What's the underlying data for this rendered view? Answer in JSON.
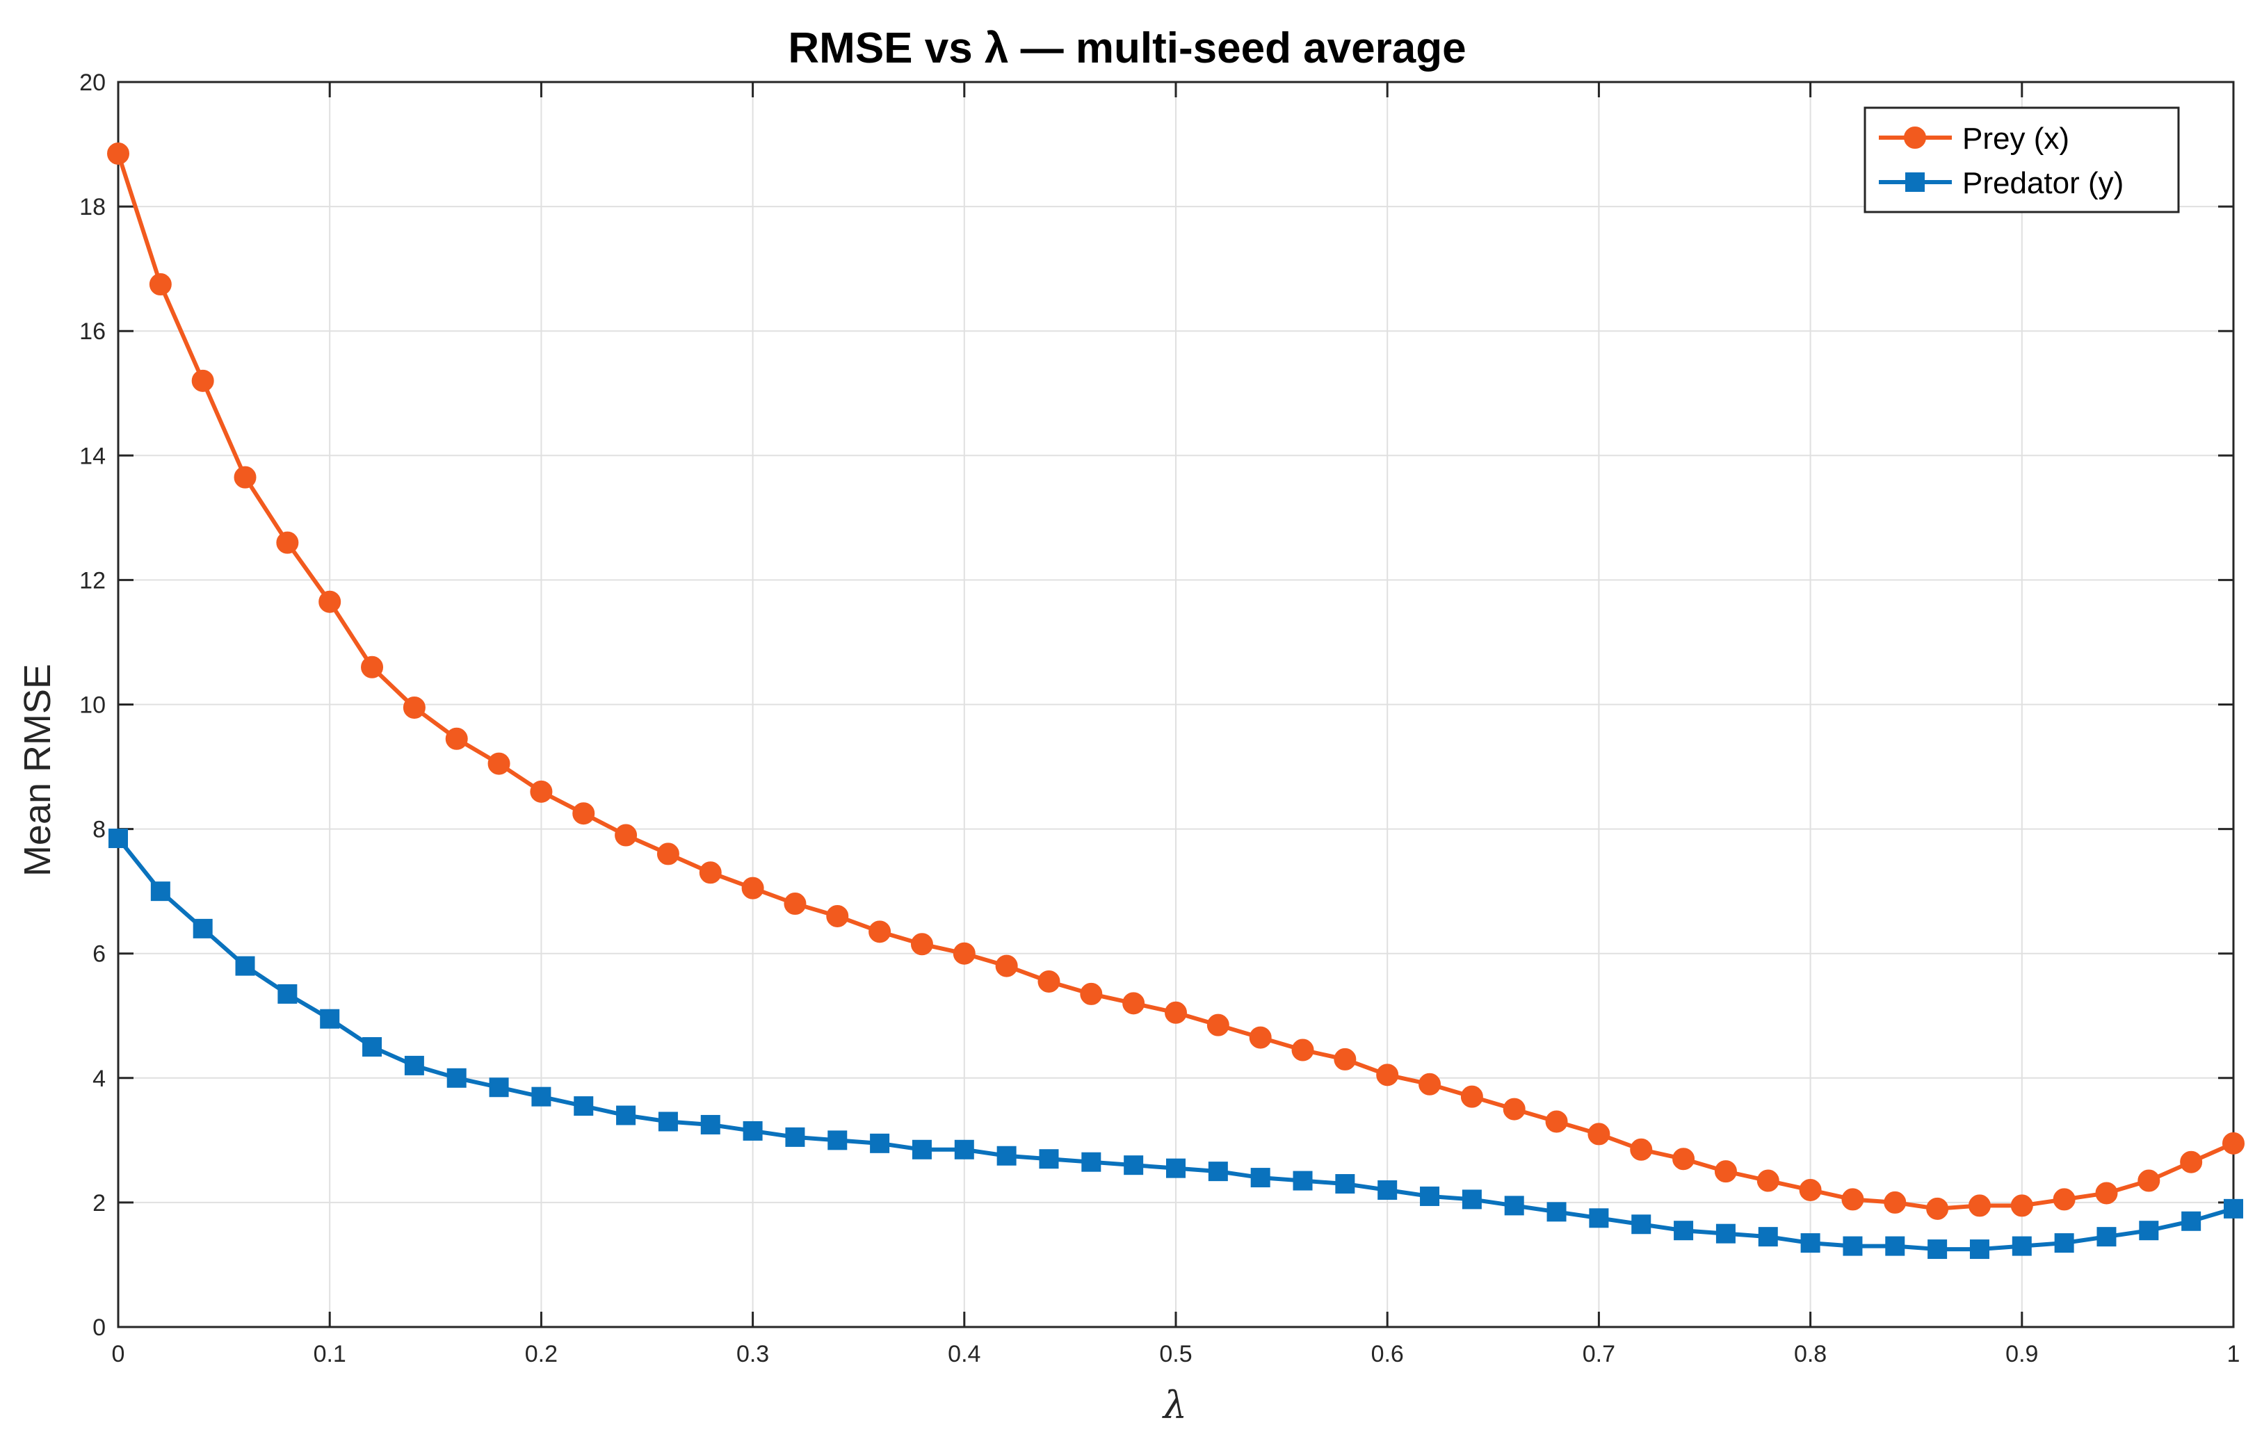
{
  "chart_data": {
    "type": "line",
    "title": "RMSE vs λ — multi-seed average",
    "xlabel": "λ",
    "ylabel": "Mean RMSE",
    "xlim": [
      0,
      1
    ],
    "ylim": [
      0,
      20
    ],
    "xticks": [
      0,
      0.1,
      0.2,
      0.3,
      0.4,
      0.5,
      0.6,
      0.7,
      0.8,
      0.9,
      1
    ],
    "xtick_labels": [
      "0",
      "0.1",
      "0.2",
      "0.3",
      "0.4",
      "0.5",
      "0.6",
      "0.7",
      "0.8",
      "0.9",
      "1"
    ],
    "yticks": [
      0,
      2,
      4,
      6,
      8,
      10,
      12,
      14,
      16,
      18,
      20
    ],
    "ytick_labels": [
      "0",
      "2",
      "4",
      "6",
      "8",
      "10",
      "12",
      "14",
      "16",
      "18",
      "20"
    ],
    "grid": true,
    "legend_position": "top-right",
    "x": [
      0,
      0.02,
      0.04,
      0.06,
      0.08,
      0.1,
      0.12,
      0.14,
      0.16,
      0.18,
      0.2,
      0.22,
      0.24,
      0.26,
      0.28,
      0.3,
      0.32,
      0.34,
      0.36,
      0.38,
      0.4,
      0.42,
      0.44,
      0.46,
      0.48,
      0.5,
      0.52,
      0.54,
      0.56,
      0.58,
      0.6,
      0.62,
      0.64,
      0.66,
      0.68,
      0.7,
      0.72,
      0.74,
      0.76,
      0.78,
      0.8,
      0.82,
      0.84,
      0.86,
      0.88,
      0.9,
      0.92,
      0.94,
      0.96,
      0.98,
      1
    ],
    "series": [
      {
        "name": "Prey (x)",
        "color": "#F25A1E",
        "marker": "circle",
        "values": [
          18.85,
          16.75,
          15.2,
          13.65,
          12.6,
          11.65,
          10.6,
          9.95,
          9.45,
          9.05,
          8.6,
          8.25,
          7.9,
          7.6,
          7.3,
          7.05,
          6.8,
          6.6,
          6.35,
          6.15,
          6.0,
          5.8,
          5.55,
          5.35,
          5.2,
          5.05,
          4.85,
          4.65,
          4.45,
          4.3,
          4.05,
          3.9,
          3.7,
          3.5,
          3.3,
          3.1,
          2.85,
          2.7,
          2.5,
          2.35,
          2.2,
          2.05,
          2.0,
          1.9,
          1.95,
          1.95,
          2.05,
          2.15,
          2.35,
          2.65,
          2.95
        ]
      },
      {
        "name": "Predator (y)",
        "color": "#0A72BD",
        "marker": "square",
        "values": [
          7.85,
          7.0,
          6.4,
          5.8,
          5.35,
          4.95,
          4.5,
          4.2,
          4.0,
          3.85,
          3.7,
          3.55,
          3.4,
          3.3,
          3.25,
          3.15,
          3.05,
          3.0,
          2.95,
          2.85,
          2.85,
          2.75,
          2.7,
          2.65,
          2.6,
          2.55,
          2.5,
          2.4,
          2.35,
          2.3,
          2.2,
          2.1,
          2.05,
          1.95,
          1.85,
          1.75,
          1.65,
          1.55,
          1.5,
          1.45,
          1.35,
          1.3,
          1.3,
          1.25,
          1.25,
          1.3,
          1.35,
          1.45,
          1.55,
          1.7,
          1.9
        ]
      }
    ]
  }
}
